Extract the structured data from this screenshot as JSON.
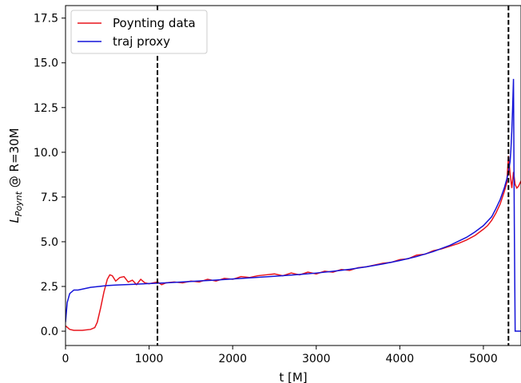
{
  "chart_data": {
    "type": "line",
    "title": "",
    "xlabel": "t [M]",
    "ylabel_main": "L",
    "ylabel_sub": "Poynt",
    "ylabel_rest": " @ R=30M",
    "xlim": [
      0,
      5450
    ],
    "ylim": [
      -0.8,
      18.2
    ],
    "xticks": [
      0,
      1000,
      2000,
      3000,
      4000,
      5000
    ],
    "xtick_labels": [
      "0",
      "1000",
      "2000",
      "3000",
      "4000",
      "5000"
    ],
    "yticks": [
      0,
      2.5,
      5,
      7.5,
      10,
      12.5,
      15,
      17.5
    ],
    "ytick_labels": [
      "0.0",
      "2.5",
      "5.0",
      "7.5",
      "10.0",
      "12.5",
      "15.0",
      "17.5"
    ],
    "grid": false,
    "legend_position": "top-left",
    "vlines": [
      1100,
      5300
    ],
    "vline_color": "#000000",
    "series": [
      {
        "name": "Poynting data",
        "color": "#e8141c",
        "x": [
          0,
          50,
          100,
          200,
          300,
          350,
          380,
          420,
          460,
          500,
          530,
          560,
          600,
          650,
          700,
          750,
          800,
          850,
          900,
          950,
          1000,
          1050,
          1100,
          1150,
          1200,
          1300,
          1400,
          1500,
          1600,
          1700,
          1800,
          1900,
          2000,
          2100,
          2200,
          2300,
          2400,
          2500,
          2600,
          2700,
          2800,
          2900,
          3000,
          3100,
          3200,
          3300,
          3400,
          3500,
          3600,
          3700,
          3800,
          3900,
          4000,
          4100,
          4200,
          4300,
          4400,
          4500,
          4600,
          4700,
          4800,
          4900,
          5000,
          5050,
          5100,
          5150,
          5200,
          5250,
          5280,
          5300,
          5320,
          5340,
          5360,
          5380,
          5400,
          5420,
          5450
        ],
        "y": [
          0.3,
          0.1,
          0.05,
          0.05,
          0.1,
          0.2,
          0.5,
          1.3,
          2.2,
          2.9,
          3.15,
          3.1,
          2.8,
          3.0,
          3.05,
          2.75,
          2.85,
          2.6,
          2.9,
          2.7,
          2.65,
          2.7,
          2.75,
          2.6,
          2.7,
          2.75,
          2.7,
          2.8,
          2.75,
          2.9,
          2.8,
          2.95,
          2.9,
          3.05,
          3.0,
          3.1,
          3.15,
          3.2,
          3.1,
          3.25,
          3.15,
          3.3,
          3.2,
          3.35,
          3.3,
          3.45,
          3.4,
          3.55,
          3.6,
          3.7,
          3.8,
          3.85,
          4.0,
          4.05,
          4.25,
          4.3,
          4.5,
          4.6,
          4.75,
          4.9,
          5.1,
          5.35,
          5.7,
          5.9,
          6.2,
          6.6,
          7.1,
          7.8,
          8.3,
          9.8,
          8.8,
          8.0,
          8.9,
          8.2,
          8.0,
          8.1,
          8.4
        ]
      },
      {
        "name": "traj proxy",
        "color": "#1414d8",
        "x": [
          0,
          20,
          50,
          100,
          150,
          200,
          300,
          400,
          500,
          600,
          800,
          1000,
          1200,
          1500,
          1800,
          2000,
          2200,
          2500,
          2800,
          3000,
          3200,
          3400,
          3600,
          3800,
          4000,
          4200,
          4400,
          4600,
          4800,
          4900,
          5000,
          5100,
          5150,
          5200,
          5250,
          5280,
          5300,
          5320,
          5330,
          5340,
          5350,
          5360,
          5370,
          5380,
          5400,
          5450
        ],
        "y": [
          0.5,
          1.6,
          2.1,
          2.3,
          2.3,
          2.35,
          2.45,
          2.5,
          2.55,
          2.58,
          2.62,
          2.66,
          2.7,
          2.78,
          2.86,
          2.92,
          2.98,
          3.07,
          3.17,
          3.25,
          3.35,
          3.46,
          3.6,
          3.76,
          3.95,
          4.17,
          4.45,
          4.8,
          5.25,
          5.55,
          5.9,
          6.4,
          6.85,
          7.35,
          8.0,
          8.5,
          8.9,
          9.5,
          10.2,
          11.2,
          12.5,
          14.1,
          6.0,
          0.0,
          0.0,
          0.0
        ]
      }
    ]
  }
}
